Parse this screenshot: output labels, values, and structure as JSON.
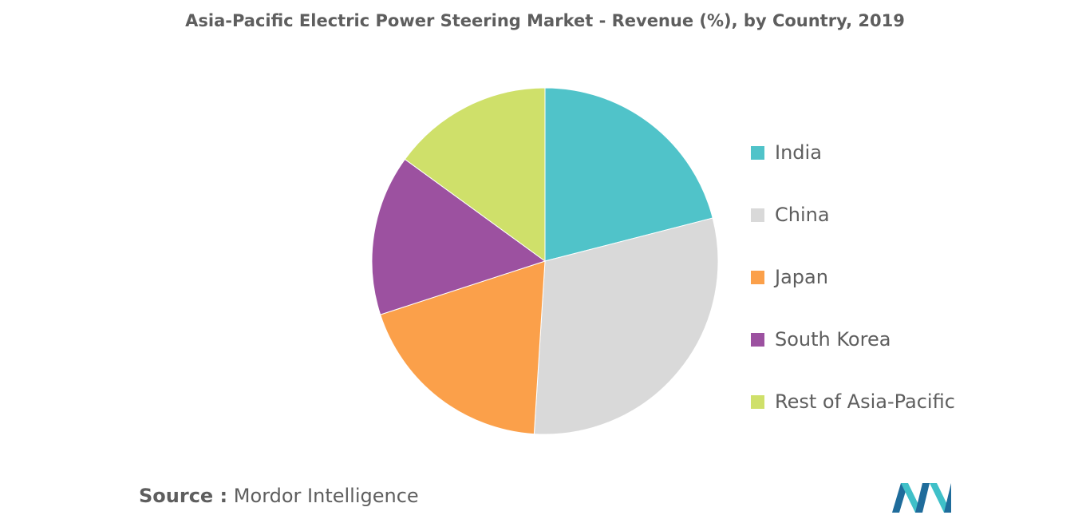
{
  "chart_data": {
    "type": "pie",
    "title": "Asia-Pacific Electric Power Steering Market - Revenue (%), by Country, 2019",
    "categories": [
      "India",
      "China",
      "Japan",
      "South Korea",
      "Rest of Asia-Pacific"
    ],
    "values": [
      21,
      30,
      19,
      15,
      15
    ],
    "colors": [
      "#50c3c9",
      "#d9d9d9",
      "#fba04a",
      "#9c51a0",
      "#cfe06a"
    ],
    "start_angle_deg": 0,
    "direction": "clockwise",
    "legend_position": "right"
  },
  "source": {
    "prefix": "Source :",
    "text": "Mordor Intelligence"
  },
  "logo": {
    "icon": "mordor-intelligence-logo-icon",
    "colors": [
      "#1f6c9b",
      "#3fc0c8"
    ]
  }
}
